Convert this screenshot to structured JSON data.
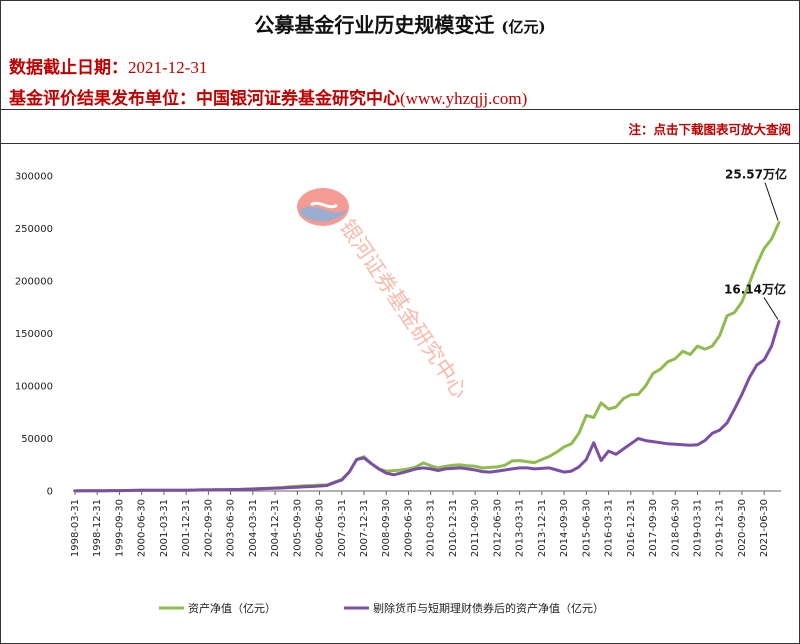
{
  "header": {
    "title": "公募基金行业历史规模变迁",
    "title_unit": "(亿元)",
    "cutoff_label": "数据截止日期：",
    "cutoff_date": "2021-12-31",
    "publisher_label": "基金评价结果发布单位：",
    "publisher": "中国银河证券基金研究中心",
    "website": "(www.yhzqjj.com)",
    "note": "注：点击下载图表可放大查阅"
  },
  "watermark": {
    "text": "银河证券基金研究中心",
    "logo": "galaxy-logo-icon"
  },
  "colors": {
    "series_total": "#8fbc4f",
    "series_excl": "#7b4fa6",
    "header_red": "#c00000",
    "watermark": "#f6a38f"
  },
  "chart_data": {
    "type": "line",
    "title": "公募基金行业历史规模变迁 (亿元)",
    "ylim": [
      0,
      300000
    ],
    "yticks": [
      "0",
      "50000",
      "100000",
      "150000",
      "200000",
      "250000",
      "300000"
    ],
    "x_ticks": [
      "1998-03-31",
      "1998-12-31",
      "1999-09-30",
      "2000-06-30",
      "2001-03-31",
      "2001-12-31",
      "2002-09-30",
      "2003-06-30",
      "2004-03-31",
      "2004-12-31",
      "2005-09-30",
      "2006-06-30",
      "2007-03-31",
      "2007-12-31",
      "2008-09-30",
      "2009-06-30",
      "2010-03-31",
      "2010-12-31",
      "2011-09-30",
      "2012-06-30",
      "2013-03-31",
      "2013-12-31",
      "2014-09-30",
      "2015-06-30",
      "2016-03-31",
      "2016-12-31",
      "2017-09-30",
      "2018-06-30",
      "2019-03-31",
      "2019-12-31",
      "2020-09-30",
      "2021-06-30"
    ],
    "x": [
      "1998-03-31",
      "1998-06-30",
      "1998-09-30",
      "1998-12-31",
      "1999-03-31",
      "1999-06-30",
      "1999-09-30",
      "1999-12-31",
      "2000-03-31",
      "2000-06-30",
      "2000-09-30",
      "2000-12-31",
      "2001-03-31",
      "2001-06-30",
      "2001-09-30",
      "2001-12-31",
      "2002-03-31",
      "2002-06-30",
      "2002-09-30",
      "2002-12-31",
      "2003-03-31",
      "2003-06-30",
      "2003-09-30",
      "2003-12-31",
      "2004-03-31",
      "2004-06-30",
      "2004-09-30",
      "2004-12-31",
      "2005-03-31",
      "2005-06-30",
      "2005-09-30",
      "2005-12-31",
      "2006-03-31",
      "2006-06-30",
      "2006-09-30",
      "2006-12-31",
      "2007-03-31",
      "2007-06-30",
      "2007-09-30",
      "2007-12-31",
      "2008-03-31",
      "2008-06-30",
      "2008-09-30",
      "2008-12-31",
      "2009-03-31",
      "2009-06-30",
      "2009-09-30",
      "2009-12-31",
      "2010-03-31",
      "2010-06-30",
      "2010-09-30",
      "2010-12-31",
      "2011-03-31",
      "2011-06-30",
      "2011-09-30",
      "2011-12-31",
      "2012-03-31",
      "2012-06-30",
      "2012-09-30",
      "2012-12-31",
      "2013-03-31",
      "2013-06-30",
      "2013-09-30",
      "2013-12-31",
      "2014-03-31",
      "2014-06-30",
      "2014-09-30",
      "2014-12-31",
      "2015-03-31",
      "2015-06-30",
      "2015-09-30",
      "2015-12-31",
      "2016-03-31",
      "2016-06-30",
      "2016-09-30",
      "2016-12-31",
      "2017-03-31",
      "2017-06-30",
      "2017-09-30",
      "2017-12-31",
      "2018-03-31",
      "2018-06-30",
      "2018-09-30",
      "2018-12-31",
      "2019-03-31",
      "2019-06-30",
      "2019-09-30",
      "2019-12-31",
      "2020-03-31",
      "2020-06-30",
      "2020-09-30",
      "2020-12-31",
      "2021-03-31",
      "2021-06-30",
      "2021-09-30",
      "2021-12-31"
    ],
    "series": [
      {
        "name": "资产净值（亿元）",
        "color": "#8fbc4f",
        "values": [
          100,
          150,
          200,
          250,
          300,
          350,
          400,
          500,
          600,
          700,
          750,
          800,
          800,
          750,
          750,
          800,
          900,
          1000,
          1000,
          1100,
          1200,
          1300,
          1400,
          1700,
          2000,
          2400,
          2600,
          3000,
          3300,
          4000,
          4500,
          5000,
          5200,
          5600,
          5800,
          8500,
          11000,
          18000,
          30000,
          32700,
          26000,
          21000,
          19000,
          19400,
          20000,
          21000,
          23000,
          26800,
          24000,
          22000,
          23500,
          24600,
          25000,
          24000,
          23500,
          21900,
          22500,
          23000,
          24500,
          28700,
          29000,
          28000,
          27000,
          30000,
          33000,
          37000,
          42000,
          45000,
          55000,
          72000,
          70000,
          84000,
          78000,
          80000,
          88000,
          91600,
          92000,
          100000,
          112000,
          116000,
          123000,
          126000,
          133000,
          130000,
          138000,
          135000,
          138000,
          148000,
          167000,
          170000,
          180000,
          198000,
          216000,
          231000,
          240000,
          255700
        ]
      },
      {
        "name": "剔除货币与短期理财债券后的资产净值（亿元）",
        "color": "#7b4fa6",
        "values": [
          100,
          150,
          200,
          250,
          300,
          350,
          400,
          500,
          600,
          700,
          750,
          800,
          800,
          750,
          750,
          800,
          900,
          1000,
          1000,
          1100,
          1200,
          1300,
          1400,
          1600,
          1900,
          2200,
          2400,
          2700,
          2900,
          3300,
          3600,
          4000,
          4300,
          4800,
          5200,
          8000,
          10500,
          18000,
          30000,
          31500,
          26000,
          21000,
          17000,
          15400,
          17000,
          19000,
          21000,
          22000,
          21000,
          19500,
          21000,
          21500,
          22000,
          21000,
          20000,
          18500,
          18000,
          19000,
          20000,
          21000,
          22000,
          22000,
          21000,
          21500,
          22000,
          20000,
          18000,
          19000,
          23000,
          30000,
          46000,
          29000,
          38000,
          35000,
          40000,
          45000,
          50000,
          48000,
          47000,
          46000,
          45000,
          44500,
          44000,
          43500,
          44000,
          48000,
          55000,
          58000,
          65000,
          78000,
          92000,
          108000,
          120000,
          125000,
          138000,
          161400
        ]
      }
    ],
    "annotations": [
      {
        "text": "25.57万亿",
        "value": 255700,
        "series": 0
      },
      {
        "text": "16.14万亿",
        "value": 161400,
        "series": 1
      }
    ],
    "legend_position": "bottom",
    "grid": false
  }
}
